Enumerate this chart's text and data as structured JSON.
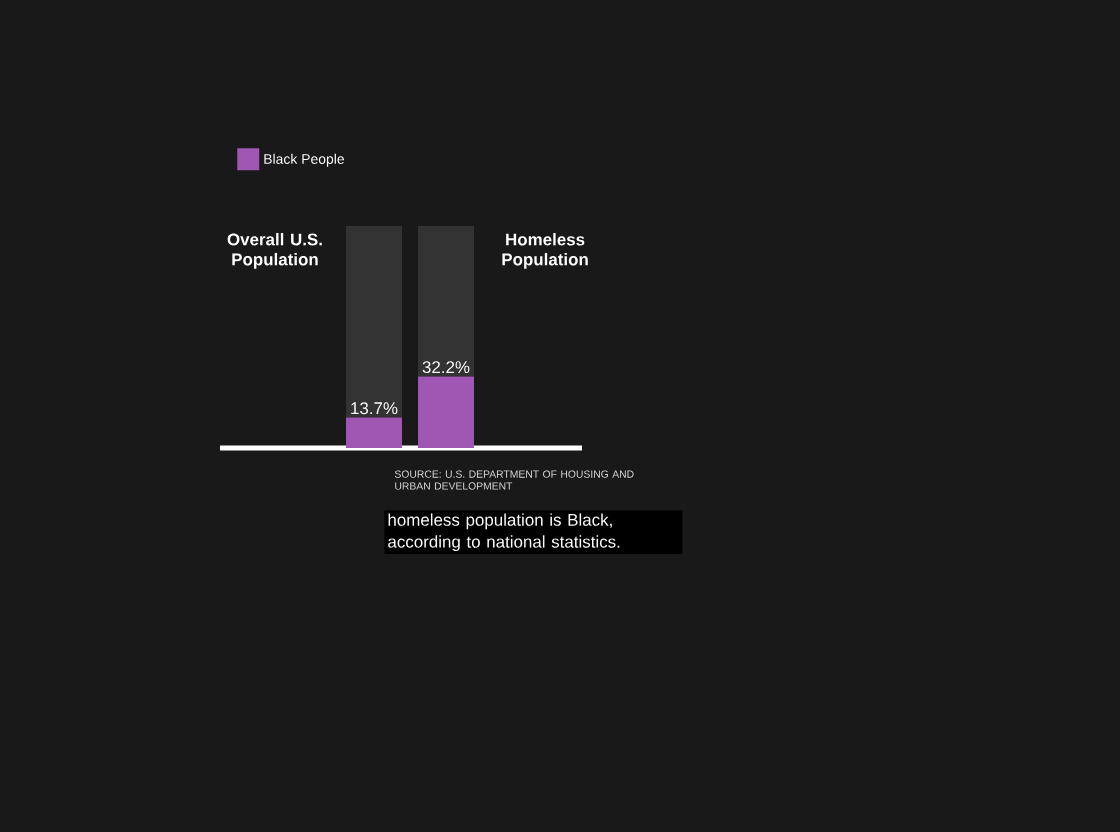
{
  "chart_data": {
    "type": "bar",
    "stacked": true,
    "categories": [
      "Overall U.S. Population",
      "Homeless Population"
    ],
    "series": [
      {
        "name": "Black People",
        "color": "#a057b3",
        "values": [
          13.7,
          32.2
        ],
        "value_labels": [
          "13.7%",
          "32.2%"
        ]
      },
      {
        "type": "bar",
        "color": "#333333",
        "values": [
          86.3,
          67.8
        ]
      }
    ],
    "legend": "top left",
    "annotations": [
      "SOURCE: U.S. DEPARTMENT OF HOUSING AND URBAN DEVELOPMENT",
      "homeless population is Black, according to national statistics."
    ]
  }
}
